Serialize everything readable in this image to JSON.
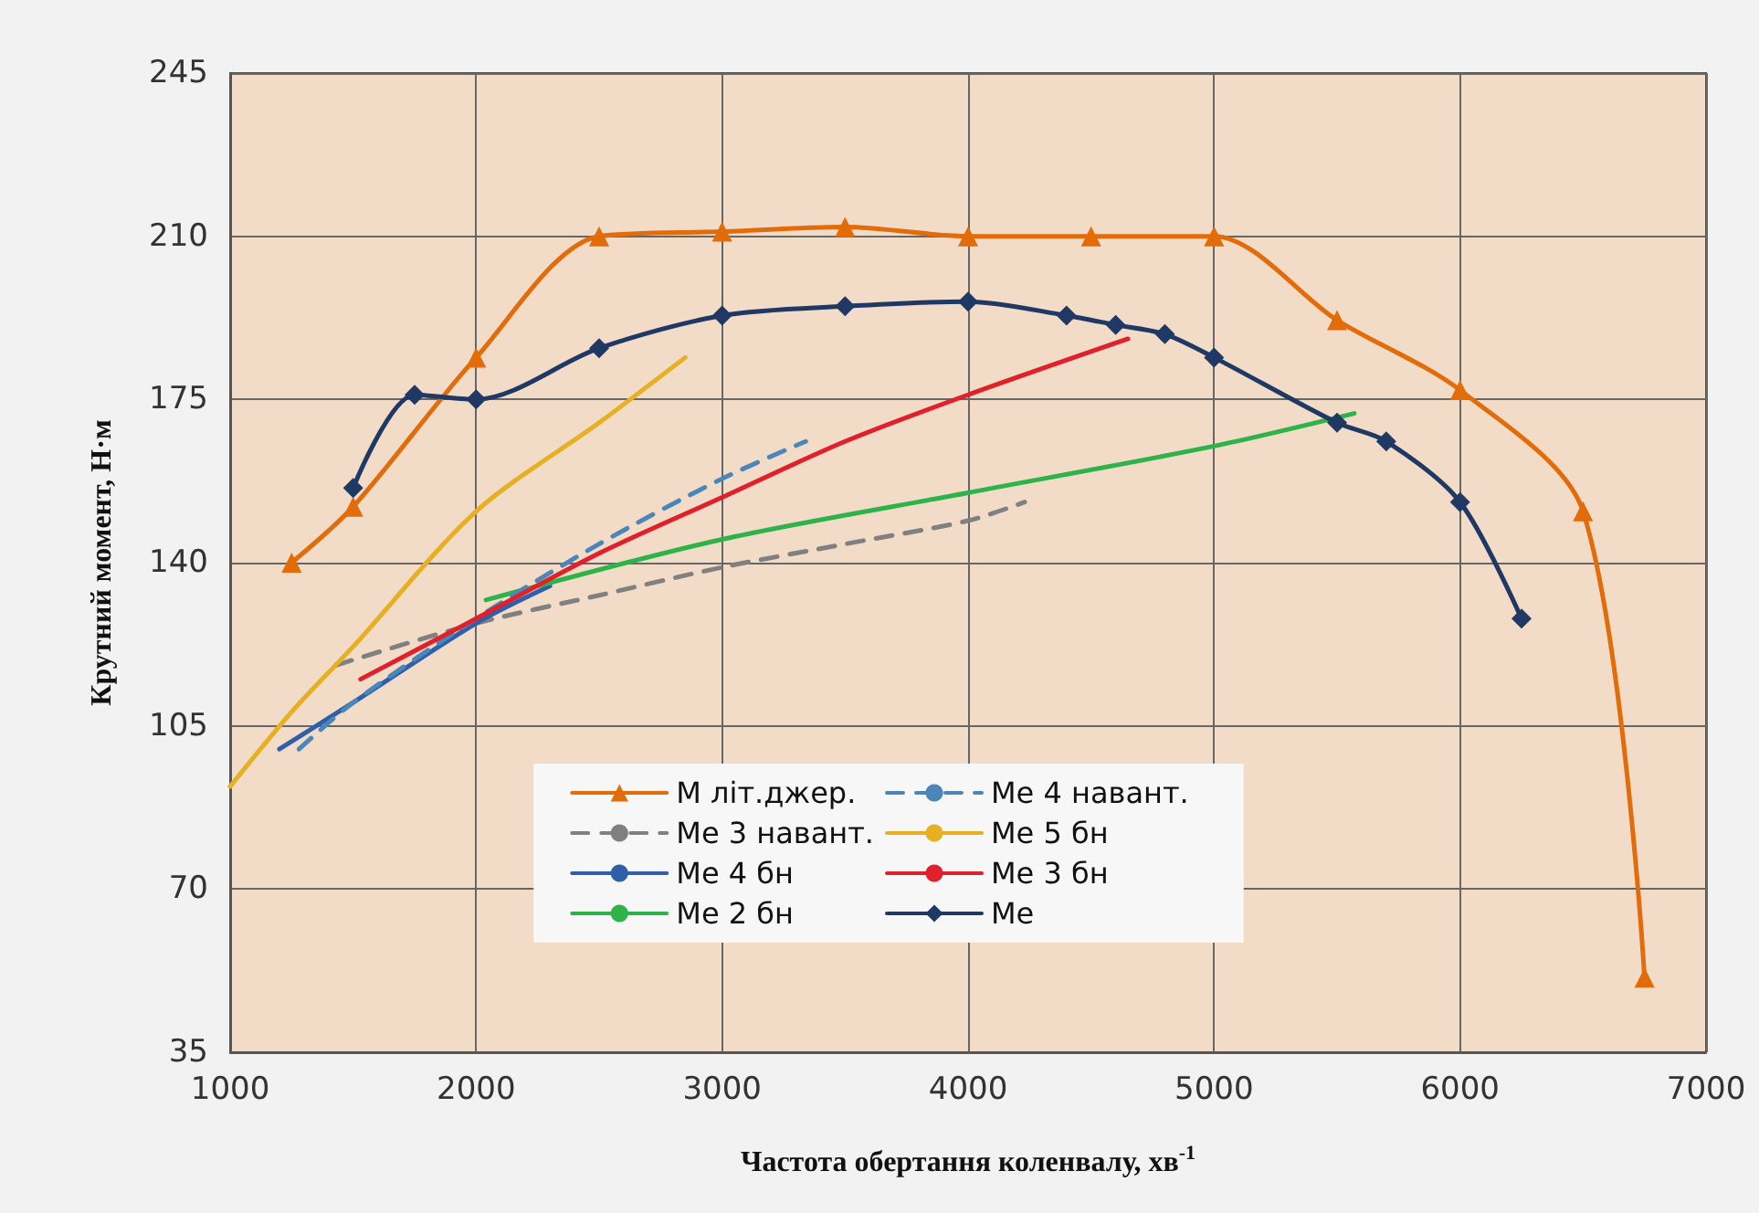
{
  "chart_data": {
    "type": "line",
    "xlabel": "Частота обертання коленвалу, хв$^{-1}$",
    "ylabel": "Крутний момент, Н·м",
    "xlim": [
      1000,
      7000
    ],
    "xticks": [
      1000,
      2000,
      3000,
      4000,
      5000,
      6000,
      7000
    ],
    "ylim": [
      35,
      245
    ],
    "yticks": [
      35,
      70,
      105,
      140,
      175,
      210,
      245
    ],
    "grid": true,
    "legend": "bottom",
    "series": [
      {
        "name": "M літ.джер.",
        "color": "#e36c0a",
        "marker": "triangle",
        "line_style": "solid",
        "x": [
          1250,
          1500,
          2000,
          2500,
          3000,
          3500,
          4000,
          4500,
          5000,
          5500,
          6000,
          6500,
          6750
        ],
        "values": [
          140,
          152,
          184,
          210,
          211,
          212,
          210,
          210,
          210,
          192,
          177,
          151,
          51
        ]
      },
      {
        "name": "Me 3 навант.",
        "color": "#808080",
        "marker": "none",
        "line_style": "dashed",
        "x": [
          1430,
          2000,
          2500,
          3000,
          3500,
          4000,
          4230
        ],
        "values": [
          118,
          127,
          133,
          139,
          144,
          149,
          153
        ]
      },
      {
        "name": "Me 4 бн",
        "color": "#2e5fa8",
        "marker": "none",
        "line_style": "solid",
        "x": [
          1200,
          1500,
          2000,
          2300
        ],
        "values": [
          100,
          110,
          127,
          135
        ]
      },
      {
        "name": "Me 2 бн",
        "color": "#2db34a",
        "marker": "none",
        "line_style": "solid",
        "x": [
          2040,
          3000,
          4000,
          5000,
          5570
        ],
        "values": [
          132,
          145,
          155,
          165,
          172
        ]
      },
      {
        "name": "Me 4 навант.",
        "color": "#4a86b8",
        "marker": "none",
        "line_style": "dashed",
        "x": [
          1280,
          1500,
          2000,
          2500,
          3000,
          3340
        ],
        "values": [
          100,
          110,
          128,
          144,
          158,
          166
        ]
      },
      {
        "name": "Me 5 бн",
        "color": "#e6b022",
        "marker": "none",
        "line_style": "solid",
        "x": [
          1000,
          1250,
          1500,
          2000,
          2500,
          2850
        ],
        "values": [
          92,
          108,
          122,
          151,
          170,
          184
        ]
      },
      {
        "name": "Me 3 бн",
        "color": "#e0202a",
        "marker": "none",
        "line_style": "solid",
        "x": [
          1530,
          2000,
          2500,
          3000,
          3500,
          4000,
          4650
        ],
        "values": [
          115,
          128,
          142,
          154,
          166,
          176,
          188
        ]
      },
      {
        "name": "Me",
        "color": "#1f3864",
        "marker": "diamond",
        "line_style": "solid",
        "x": [
          1500,
          1750,
          2000,
          2500,
          3000,
          3500,
          4000,
          4400,
          4600,
          4800,
          5000,
          5500,
          5700,
          6000,
          6250
        ],
        "values": [
          156,
          176,
          175,
          186,
          193,
          195,
          196,
          193,
          191,
          189,
          184,
          170,
          166,
          153,
          128
        ]
      }
    ]
  }
}
